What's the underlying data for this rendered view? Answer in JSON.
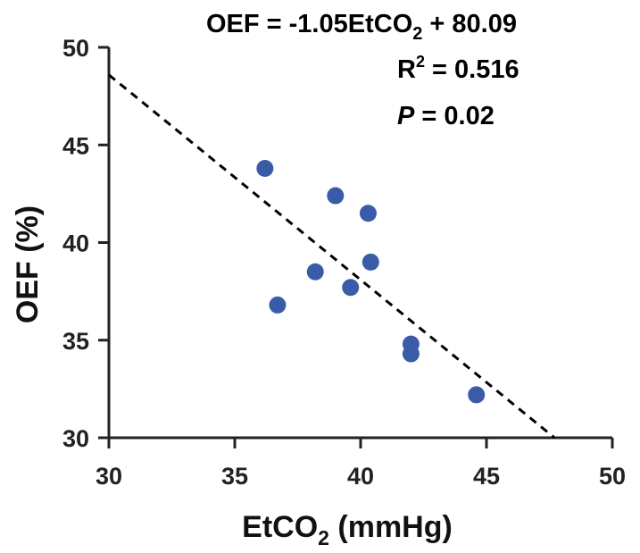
{
  "chart_data": {
    "type": "scatter",
    "title": "",
    "xlabel": {
      "main": "EtCO",
      "sub": "2",
      "suffix": " (mmHg)"
    },
    "ylabel": "OEF (%)",
    "xlim": [
      30,
      50
    ],
    "ylim": [
      30,
      50
    ],
    "xticks": [
      "30",
      "35",
      "40",
      "45",
      "50"
    ],
    "yticks": [
      "30",
      "35",
      "40",
      "45",
      "50"
    ],
    "grid": false,
    "points": [
      {
        "x": 36.2,
        "y": 43.8
      },
      {
        "x": 36.7,
        "y": 36.8
      },
      {
        "x": 38.2,
        "y": 38.5
      },
      {
        "x": 39.0,
        "y": 42.4
      },
      {
        "x": 39.6,
        "y": 37.7
      },
      {
        "x": 40.3,
        "y": 41.5
      },
      {
        "x": 40.4,
        "y": 39.0
      },
      {
        "x": 42.0,
        "y": 34.8
      },
      {
        "x": 42.0,
        "y": 34.3
      },
      {
        "x": 44.6,
        "y": 32.2
      }
    ],
    "fit_line": {
      "slope": -1.05,
      "intercept": 80.09,
      "style": "dashed"
    },
    "annotations": {
      "equation": {
        "lhs": "OEF = -1.05EtCO",
        "sub": "2",
        "rhs": " + 80.09"
      },
      "r2": {
        "label": "R",
        "sup": "2",
        "value": " = 0.516"
      },
      "p": {
        "label": "P",
        "value": " = 0.02"
      }
    },
    "colors": {
      "points": "#3a5ca8",
      "axis": "#222222",
      "line": "#000000"
    }
  }
}
